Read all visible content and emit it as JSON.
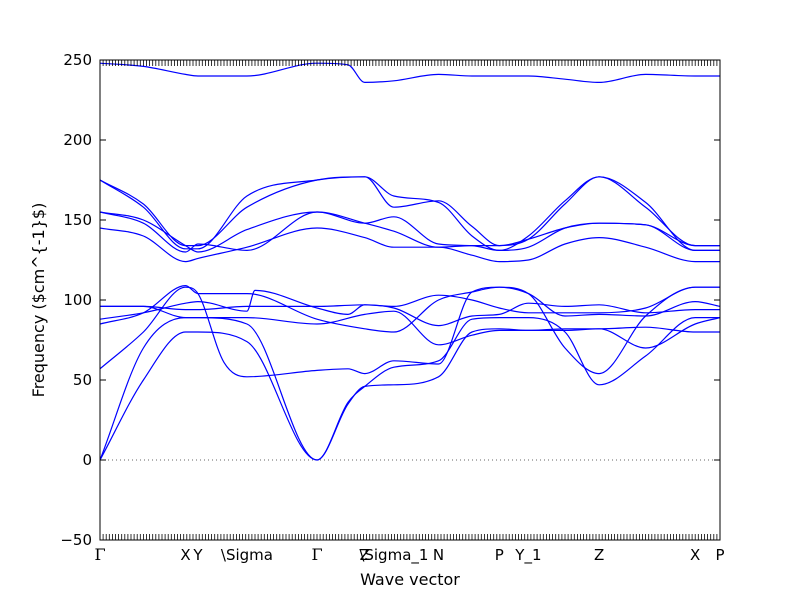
{
  "chart_data": {
    "type": "line",
    "title": "",
    "xlabel": "Wave vector",
    "ylabel": "Frequency ($cm^{-1}$)",
    "ylim": [
      -50,
      250
    ],
    "yticks": [
      -50,
      0,
      50,
      100,
      150,
      200,
      250
    ],
    "xlim": [
      0,
      1
    ],
    "zero_line": true,
    "line_color": "#0000ff",
    "zero_line_color": "#666666",
    "high_symmetry_points": [
      {
        "label": "Γ",
        "x": 0.0
      },
      {
        "label": "X",
        "x": 0.138
      },
      {
        "label": "Y",
        "x": 0.158
      },
      {
        "label": "\\Sigma",
        "x": 0.237
      },
      {
        "label": "Γ",
        "x": 0.35
      },
      {
        "label": "Z",
        "x": 0.427
      },
      {
        "label": "\\Sigma_1",
        "x": 0.474
      },
      {
        "label": "N",
        "x": 0.546
      },
      {
        "label": "P",
        "x": 0.644
      },
      {
        "label": "Y_1",
        "x": 0.691
      },
      {
        "label": "Z",
        "x": 0.805
      },
      {
        "label": "X",
        "x": 0.96
      },
      {
        "label": "P",
        "x": 1.0
      }
    ],
    "series": [
      {
        "x": [
          0,
          0.07,
          0.138,
          0.158,
          0.237,
          0.35,
          0.4,
          0.427,
          0.474,
          0.546,
          0.6,
          0.644,
          0.691,
          0.75,
          0.805,
          0.88,
          0.96,
          1.0
        ],
        "y": [
          0,
          50,
          80,
          80,
          74,
          0,
          35,
          46,
          47,
          52,
          80,
          82,
          81,
          82,
          82,
          83,
          80,
          80
        ]
      },
      {
        "x": [
          0,
          0.07,
          0.138,
          0.158,
          0.237,
          0.35,
          0.4,
          0.427,
          0.474,
          0.546,
          0.6,
          0.644,
          0.691,
          0.75,
          0.805,
          0.88,
          0.96,
          1.0
        ],
        "y": [
          0,
          70,
          89,
          89,
          85,
          0,
          36,
          46,
          58,
          62,
          88,
          89,
          89,
          80,
          47,
          65,
          89,
          89
        ]
      },
      {
        "x": [
          0,
          0.07,
          0.138,
          0.158,
          0.2,
          0.237,
          0.35,
          0.4,
          0.427,
          0.474,
          0.546,
          0.6,
          0.644,
          0.691,
          0.75,
          0.805,
          0.88,
          0.96,
          1.0
        ],
        "y": [
          57,
          80,
          108,
          104,
          61,
          52,
          56,
          57,
          54,
          62,
          60,
          105,
          108,
          104,
          70,
          54,
          90,
          108,
          108
        ]
      },
      {
        "x": [
          0,
          0.07,
          0.138,
          0.158,
          0.237,
          0.35,
          0.427,
          0.474,
          0.546,
          0.6,
          0.644,
          0.691,
          0.75,
          0.805,
          0.88,
          0.96,
          1.0
        ],
        "y": [
          85,
          92,
          109,
          104,
          104,
          88,
          82,
          80,
          100,
          105,
          108,
          104,
          90,
          91,
          90,
          99,
          96
        ]
      },
      {
        "x": [
          0,
          0.07,
          0.138,
          0.158,
          0.237,
          0.25,
          0.35,
          0.4,
          0.427,
          0.474,
          0.546,
          0.6,
          0.644,
          0.691,
          0.75,
          0.805,
          0.88,
          0.96,
          1.0
        ],
        "y": [
          88,
          92,
          98,
          99,
          93,
          106,
          95,
          91,
          97,
          96,
          103,
          100,
          95,
          92,
          92,
          92,
          95,
          108,
          108
        ]
      },
      {
        "x": [
          0,
          0.07,
          0.138,
          0.158,
          0.237,
          0.35,
          0.427,
          0.474,
          0.546,
          0.6,
          0.644,
          0.691,
          0.75,
          0.805,
          0.88,
          0.96,
          1.0
        ],
        "y": [
          96,
          96,
          94,
          94,
          96,
          96,
          97,
          95,
          84,
          90,
          91,
          98,
          96,
          97,
          92,
          94,
          94
        ]
      },
      {
        "x": [
          0,
          0.07,
          0.138,
          0.158,
          0.237,
          0.35,
          0.427,
          0.474,
          0.546,
          0.6,
          0.644,
          0.691,
          0.75,
          0.805,
          0.88,
          0.96,
          1.0
        ],
        "y": [
          96,
          96,
          89,
          89,
          89,
          85,
          91,
          93,
          72,
          78,
          81,
          81,
          81,
          82,
          70,
          85,
          89
        ]
      },
      {
        "x": [
          0,
          0.07,
          0.138,
          0.158,
          0.237,
          0.35,
          0.427,
          0.474,
          0.546,
          0.6,
          0.644,
          0.691,
          0.75,
          0.805,
          0.88,
          0.96,
          1.0
        ],
        "y": [
          145,
          140,
          124,
          126,
          133,
          145,
          139,
          133,
          133,
          128,
          124,
          125,
          135,
          139,
          133,
          124,
          124
        ]
      },
      {
        "x": [
          0,
          0.07,
          0.138,
          0.158,
          0.237,
          0.35,
          0.427,
          0.474,
          0.546,
          0.6,
          0.644,
          0.691,
          0.75,
          0.805,
          0.88,
          0.96,
          1.0
        ],
        "y": [
          155,
          148,
          130,
          135,
          131,
          155,
          148,
          152,
          135,
          134,
          131,
          133,
          145,
          148,
          147,
          131,
          131
        ]
      },
      {
        "x": [
          0,
          0.07,
          0.138,
          0.158,
          0.237,
          0.35,
          0.427,
          0.474,
          0.546,
          0.6,
          0.644,
          0.691,
          0.75,
          0.805,
          0.88,
          0.96,
          1.0
        ],
        "y": [
          155,
          150,
          134,
          130,
          144,
          155,
          148,
          143,
          133,
          134,
          134,
          138,
          145,
          148,
          147,
          134,
          134
        ]
      },
      {
        "x": [
          0,
          0.07,
          0.138,
          0.158,
          0.237,
          0.35,
          0.427,
          0.474,
          0.546,
          0.6,
          0.644,
          0.691,
          0.75,
          0.805,
          0.88,
          0.96,
          1.0
        ],
        "y": [
          175,
          158,
          132,
          132,
          165,
          175,
          177,
          165,
          161,
          140,
          131,
          140,
          162,
          177,
          161,
          131,
          131
        ]
      },
      {
        "x": [
          0,
          0.07,
          0.138,
          0.158,
          0.237,
          0.35,
          0.427,
          0.474,
          0.546,
          0.6,
          0.644,
          0.691,
          0.75,
          0.805,
          0.88,
          0.96,
          1.0
        ],
        "y": [
          175,
          160,
          134,
          134,
          158,
          175,
          177,
          158,
          162,
          146,
          134,
          138,
          160,
          177,
          158,
          134,
          134
        ]
      },
      {
        "x": [
          0,
          0.07,
          0.138,
          0.158,
          0.237,
          0.35,
          0.4,
          0.427,
          0.474,
          0.546,
          0.6,
          0.644,
          0.691,
          0.75,
          0.805,
          0.88,
          0.96,
          1.0
        ],
        "y": [
          248,
          246,
          241,
          240,
          240,
          248,
          247,
          236,
          237,
          241,
          240,
          240,
          240,
          238,
          236,
          241,
          240,
          240
        ]
      }
    ]
  }
}
